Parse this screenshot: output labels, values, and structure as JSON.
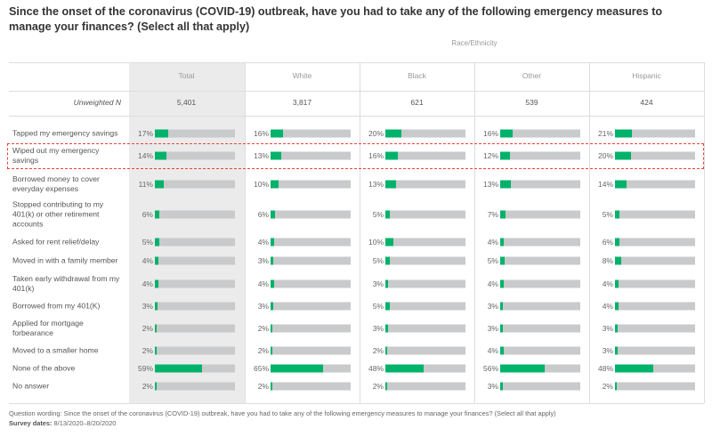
{
  "title": "Since the onset of the coronavirus (COVID-19) outbreak, have you had to take any of the following emergency measures to manage your finances? (Select all that apply)",
  "chart_data": {
    "type": "bar",
    "orientation": "horizontal",
    "group_label": "Race/Ethnicity",
    "n_label": "Unweighted N",
    "xlim": [
      0,
      100
    ],
    "columns": [
      "Total",
      "White",
      "Black",
      "Other",
      "Hispanic"
    ],
    "unweighted_n": [
      "5,401",
      "3,817",
      "621",
      "539",
      "424"
    ],
    "categories": [
      "Tapped my emergency savings",
      "Wiped out my emergency savings",
      "Borrowed money to cover everyday expenses",
      "Stopped contributing to my 401(k) or other retirement accounts",
      "Asked for rent relief/delay",
      "Moved in with a family member",
      "Taken early withdrawal from my 401(k)",
      "Borrowed from my 401(K)",
      "Applied for mortgage forbearance",
      "Moved to a smaller home",
      "None of the above",
      "No answer"
    ],
    "series": [
      {
        "name": "Total",
        "values": [
          17,
          14,
          11,
          6,
          5,
          4,
          4,
          3,
          2,
          2,
          59,
          2
        ]
      },
      {
        "name": "White",
        "values": [
          16,
          13,
          10,
          6,
          4,
          3,
          4,
          3,
          2,
          2,
          65,
          2
        ]
      },
      {
        "name": "Black",
        "values": [
          20,
          16,
          13,
          5,
          10,
          5,
          3,
          5,
          3,
          2,
          48,
          2
        ]
      },
      {
        "name": "Other",
        "values": [
          16,
          12,
          13,
          7,
          4,
          5,
          4,
          3,
          3,
          4,
          56,
          3
        ]
      },
      {
        "name": "Hispanic",
        "values": [
          21,
          20,
          14,
          5,
          6,
          8,
          4,
          4,
          3,
          3,
          48,
          2
        ]
      }
    ],
    "highlighted_category": "Wiped out my emergency savings",
    "colors": {
      "fill": "#00b26a",
      "track": "#c8cacb",
      "highlight": "#e8423b",
      "total_column_bg": "#ebebeb"
    }
  },
  "footer": {
    "question_label": "Question wording:",
    "question_text": "Since the onset of the coronavirus (COVID-19) outbreak, have you had to take any of the following emergency measures to manage your finances? (Select all that apply)",
    "dates_label": "Survey dates:",
    "dates_text": "8/13/2020–8/20/2020"
  }
}
